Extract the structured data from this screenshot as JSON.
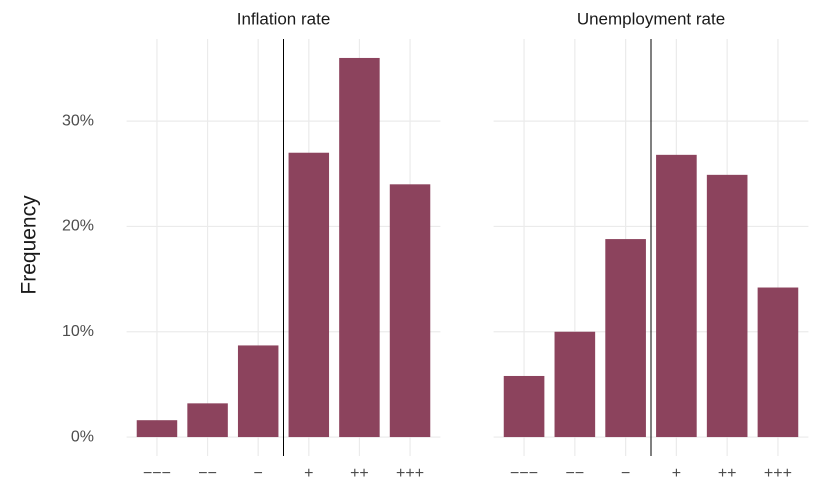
{
  "chart_data": [
    {
      "type": "bar",
      "title": "Inflation rate",
      "ylabel": "Frequency",
      "categories": [
        "−−−",
        "−−",
        "−",
        "+",
        "++",
        "+++"
      ],
      "values": [
        1.6,
        3.2,
        8.7,
        27,
        36,
        24
      ],
      "color": "#8c435d",
      "ylim": [
        -1.8,
        37.8
      ],
      "yticks": [
        {
          "value": 0,
          "label": "0%"
        },
        {
          "value": 10,
          "label": "10%"
        },
        {
          "value": 20,
          "label": "20%"
        },
        {
          "value": 30,
          "label": "30%"
        }
      ],
      "grid": true
    },
    {
      "type": "bar",
      "title": "Unemployment rate",
      "categories": [
        "−−−",
        "−−",
        "−",
        "+",
        "++",
        "+++"
      ],
      "values": [
        5.8,
        10,
        18.8,
        26.8,
        24.9,
        14.2
      ],
      "color": "#8c435d",
      "ylim": [
        -1.8,
        37.8
      ],
      "yticks": [
        {
          "value": 0,
          "label": "0%"
        },
        {
          "value": 10,
          "label": "10%"
        },
        {
          "value": 20,
          "label": "20%"
        },
        {
          "value": 30,
          "label": "30%"
        }
      ],
      "grid": true
    }
  ]
}
